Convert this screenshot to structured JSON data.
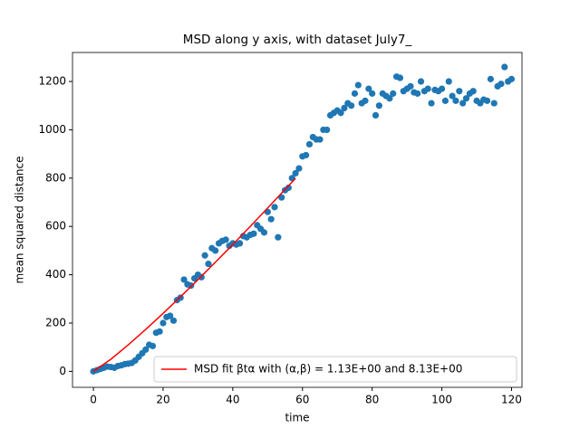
{
  "chart_data": {
    "type": "scatter",
    "title": "MSD along y axis, with dataset July7_",
    "xlabel": "time",
    "ylabel": "mean squared distance",
    "xlim": [
      -6,
      123
    ],
    "ylim": [
      -66,
      1320
    ],
    "xticks": [
      0,
      20,
      40,
      60,
      80,
      100,
      120
    ],
    "yticks": [
      0,
      200,
      400,
      600,
      800,
      1000,
      1200
    ],
    "legend": "lower right",
    "series": [
      {
        "type": "scatter",
        "color": "#1f77b4",
        "x": [
          0,
          1,
          2,
          3,
          4,
          5,
          6,
          7,
          8,
          9,
          10,
          11,
          12,
          13,
          14,
          15,
          16,
          17,
          18,
          19,
          20,
          21,
          22,
          23,
          24,
          25,
          26,
          27,
          28,
          29,
          30,
          31,
          32,
          33,
          34,
          35,
          36,
          37,
          38,
          39,
          40,
          41,
          42,
          43,
          44,
          45,
          46,
          47,
          48,
          49,
          50,
          51,
          52,
          53,
          54,
          55,
          56,
          57,
          58,
          59,
          60,
          61,
          62,
          63,
          64,
          65,
          66,
          67,
          68,
          69,
          70,
          71,
          72,
          73,
          74,
          75,
          76,
          77,
          78,
          79,
          80,
          81,
          82,
          83,
          84,
          85,
          86,
          87,
          88,
          89,
          90,
          91,
          92,
          93,
          94,
          95,
          96,
          97,
          98,
          99,
          100,
          101,
          102,
          103,
          104,
          105,
          106,
          107,
          108,
          109,
          110,
          111,
          112,
          113,
          114,
          115,
          116,
          117,
          118,
          119,
          120
        ],
        "values": [
          0,
          5,
          10,
          15,
          20,
          18,
          15,
          22,
          25,
          30,
          32,
          35,
          45,
          60,
          75,
          90,
          110,
          105,
          160,
          165,
          200,
          225,
          230,
          210,
          295,
          305,
          380,
          360,
          355,
          385,
          400,
          390,
          480,
          445,
          510,
          500,
          530,
          540,
          545,
          520,
          530,
          525,
          530,
          560,
          555,
          565,
          570,
          605,
          590,
          575,
          660,
          630,
          680,
          555,
          720,
          750,
          760,
          800,
          820,
          840,
          890,
          895,
          940,
          970,
          960,
          960,
          1000,
          1000,
          1060,
          1070,
          1080,
          1070,
          1090,
          1110,
          1100,
          1150,
          1185,
          1110,
          1120,
          1170,
          1150,
          1060,
          1100,
          1150,
          1140,
          1130,
          1150,
          1220,
          1215,
          1160,
          1170,
          1180,
          1155,
          1150,
          1200,
          1160,
          1170,
          1110,
          1165,
          1160,
          1170,
          1120,
          1200,
          1140,
          1120,
          1160,
          1110,
          1130,
          1150,
          1160,
          1120,
          1110,
          1125,
          1120,
          1210,
          1110,
          1180,
          1190,
          1260,
          1200,
          1210
        ]
      },
      {
        "type": "line",
        "color": "#ff0000",
        "name": "MSD fit βtα with (α,β) =  1.13E+00 and 8.13E+00",
        "x": [
          0,
          5,
          10,
          15,
          20,
          25,
          30,
          35,
          40,
          45,
          50,
          55,
          58
        ],
        "values": [
          0,
          50.1,
          109.7,
          173.4,
          240.0,
          308.9,
          379.6,
          452,
          525,
          600,
          676,
          753,
          799
        ]
      }
    ]
  }
}
